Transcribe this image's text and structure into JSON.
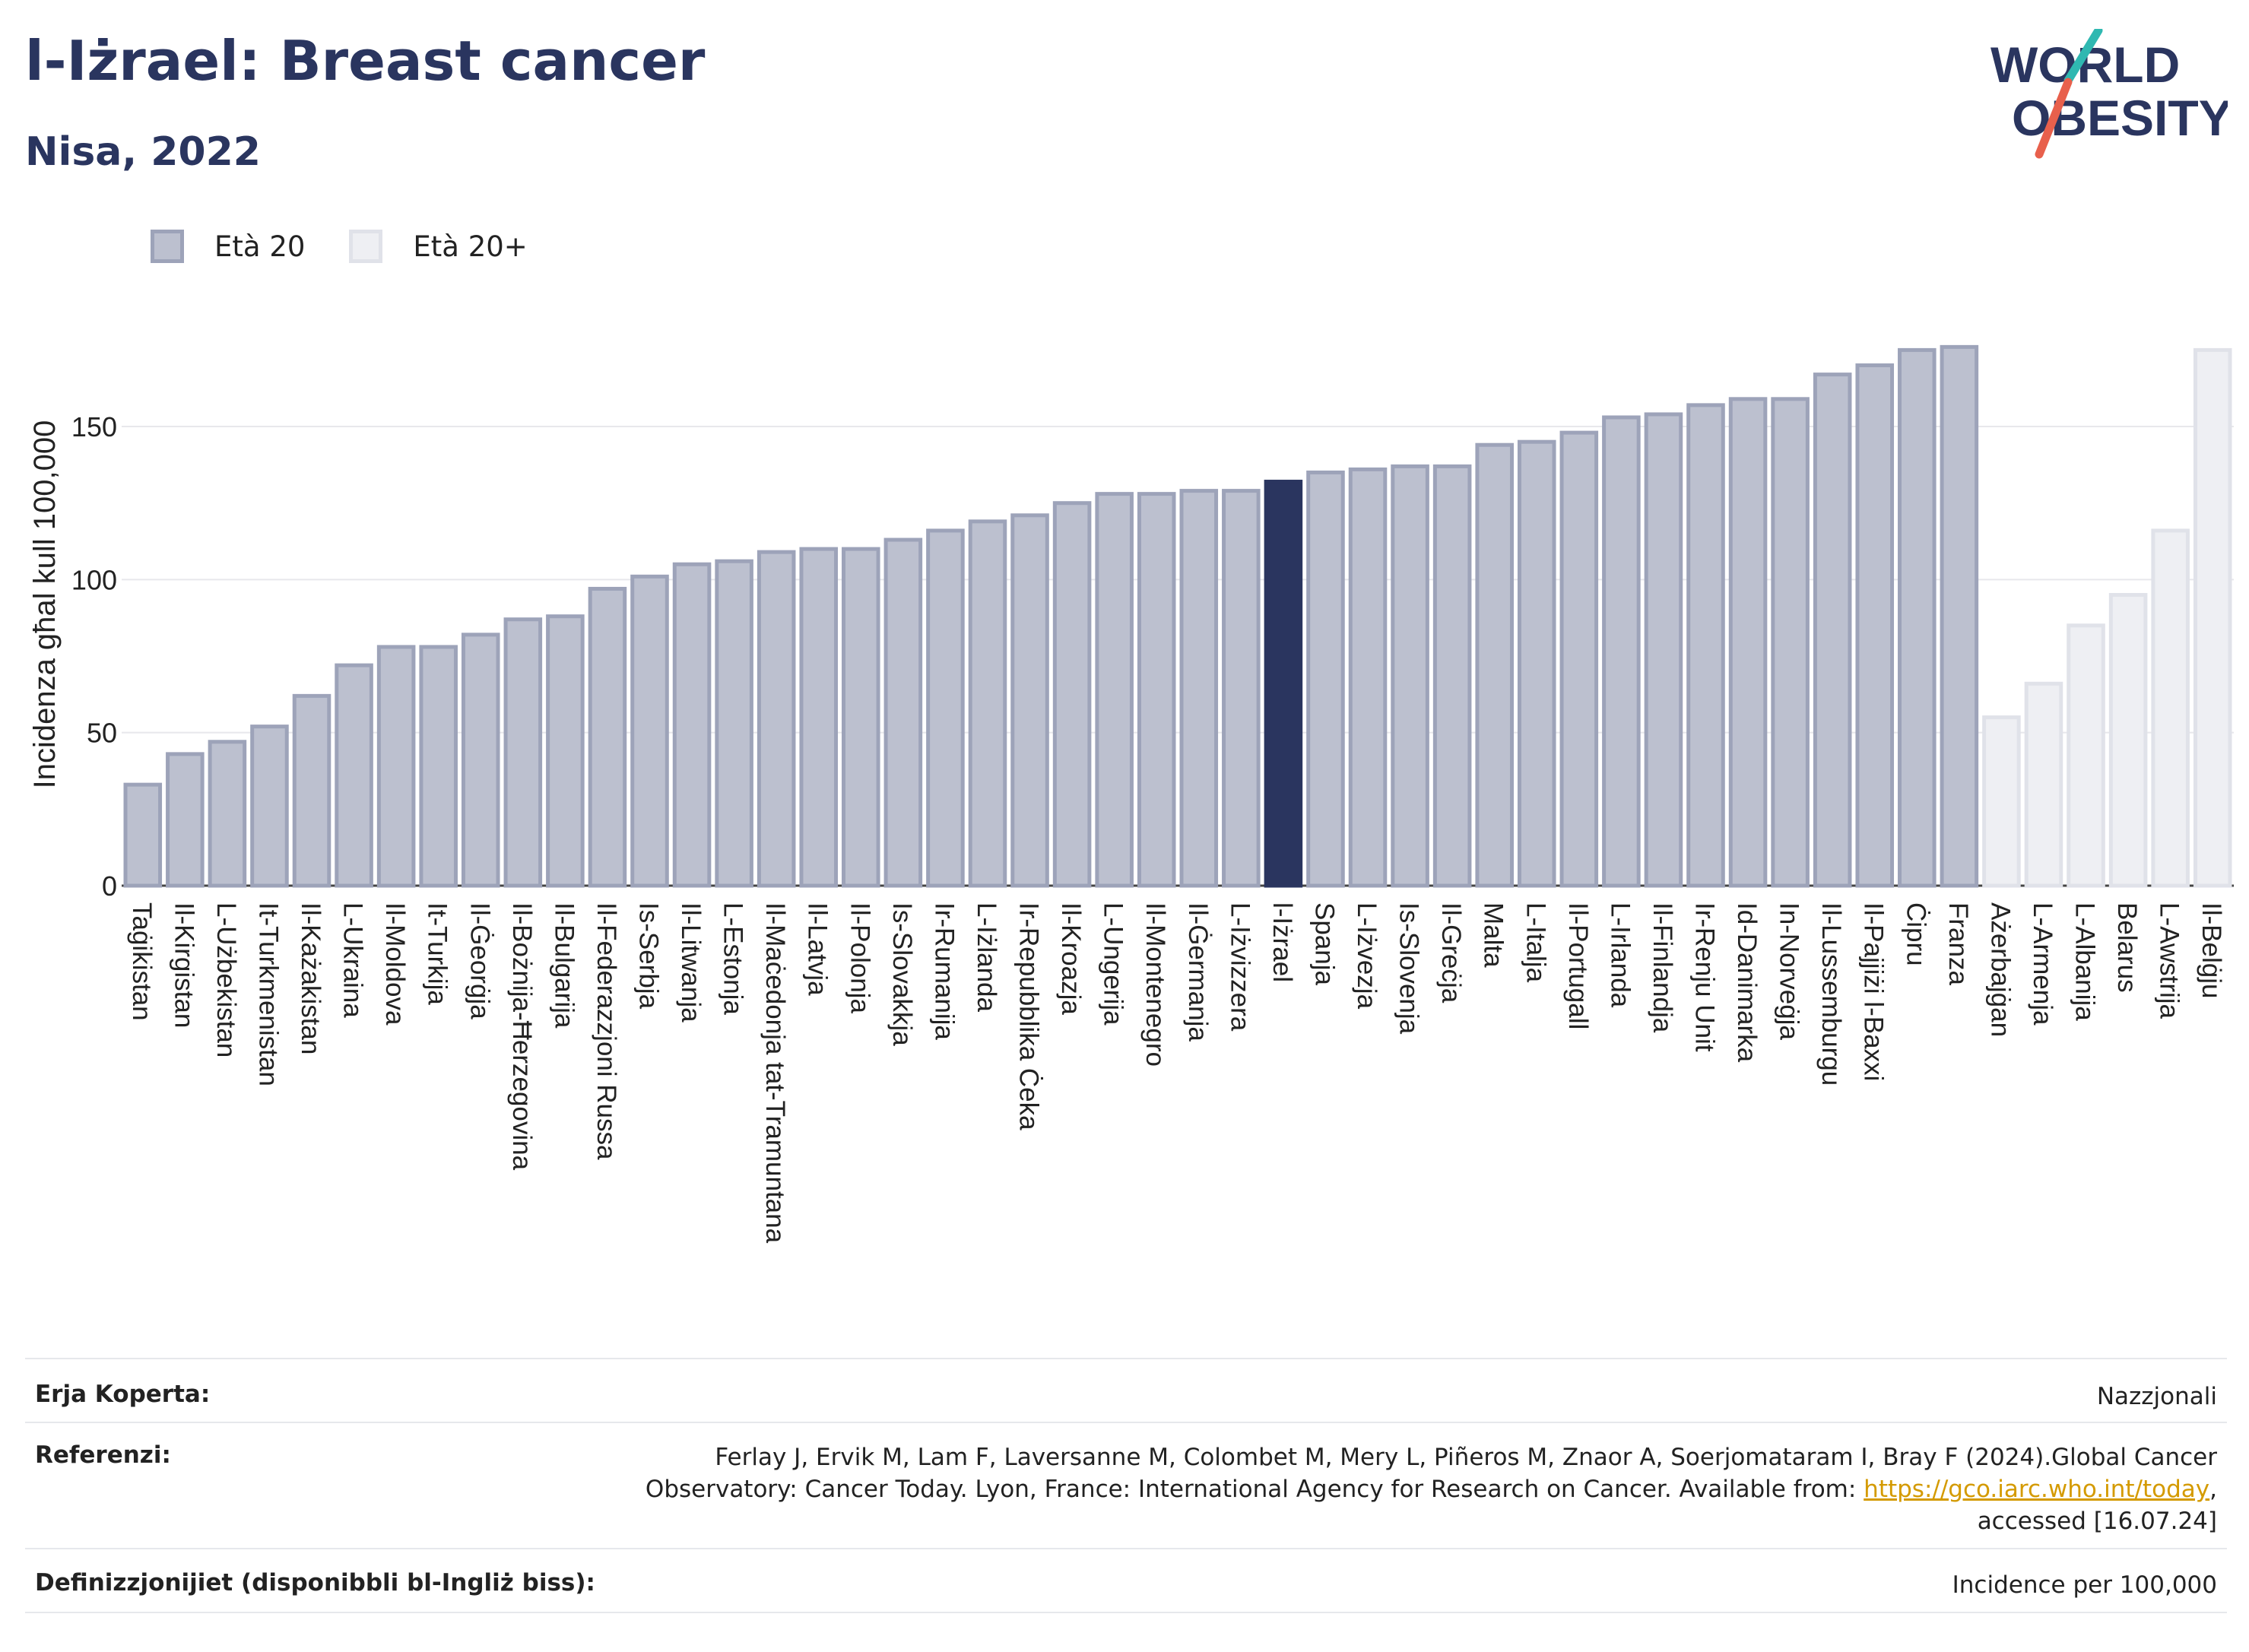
{
  "title": "l-Iżrael: Breast cancer",
  "subtitle": "Nisa, 2022",
  "logo": {
    "line1": "WORLD",
    "line2": "OBESITY"
  },
  "colors": {
    "brand_navy": "#2a355f",
    "logo_teal": "#2fb8b1",
    "logo_red": "#e8604c",
    "highlight_bar": "#2a355f",
    "age20_fill": "#bcc0cf",
    "age20_border": "#9da3b9",
    "age20plus_fill": "#eeeff3",
    "age20plus_border": "#e0e2e9",
    "gridline": "#e8e8ec"
  },
  "legend": [
    {
      "label": "Età 20",
      "color": "#bcc0cf",
      "border": "#9da3b9"
    },
    {
      "label": "Età 20+",
      "color": "#eeeff3",
      "border": "#e0e2e9"
    }
  ],
  "chart_data": {
    "type": "bar",
    "ylabel": "Incidenza għal kull 100,000",
    "ylim": [
      0,
      190
    ],
    "yticks": [
      0,
      50,
      100,
      150
    ],
    "grid": true,
    "highlight": "l-Iżrael",
    "categories": [
      "Taġikistan",
      "Il-Kirgistan",
      "L-Użbekistan",
      "It-Turkmenistan",
      "Il-Każakistan",
      "L-Ukraina",
      "Il-Moldova",
      "It-Turkija",
      "Il-Ġeorġja",
      "Il-Bożnija-Ħerzegovina",
      "Il-Bulgarija",
      "Il-Federazzjoni Russa",
      "Is-Serbja",
      "Il-Litwanja",
      "L-Estonja",
      "Il-Maċedonja tat-Tramuntana",
      "Il-Latvja",
      "Il-Polonja",
      "Is-Slovakkja",
      "Ir-Rumanija",
      "L-Iżlanda",
      "Ir-Repubblika Ċeka",
      "Il-Kroazja",
      "L-Ungerija",
      "Il-Montenegro",
      "Il-Ġermanja",
      "L-Iżvizzera",
      "l-Iżrael",
      "Spanja",
      "L-Iżvezja",
      "Is-Slovenja",
      "Il-Greċja",
      "Malta",
      "L-Italja",
      "Il-Portugall",
      "L-Irlanda",
      "Il-Finlandja",
      "Ir-Renju Unit",
      "Id-Danimarka",
      "In-Norveġja",
      "Il-Lussemburgu",
      "Il-Pajjiżi l-Baxxi",
      "Ċipru",
      "Franza",
      "Ażerbajġan",
      "L-Armenja",
      "L-Albanija",
      "Belarus",
      "L-Awstrija",
      "Il-Belġju"
    ],
    "values": [
      33,
      43,
      47,
      52,
      62,
      72,
      78,
      78,
      82,
      87,
      88,
      97,
      101,
      105,
      106,
      109,
      110,
      110,
      113,
      116,
      119,
      121,
      125,
      128,
      128,
      129,
      129,
      132,
      135,
      136,
      137,
      137,
      144,
      145,
      148,
      153,
      154,
      157,
      159,
      159,
      167,
      170,
      175,
      176,
      55,
      66,
      85,
      95,
      116,
      175
    ],
    "groups": [
      "Età 20",
      "Età 20",
      "Età 20",
      "Età 20",
      "Età 20",
      "Età 20",
      "Età 20",
      "Età 20",
      "Età 20",
      "Età 20",
      "Età 20",
      "Età 20",
      "Età 20",
      "Età 20",
      "Età 20",
      "Età 20",
      "Età 20",
      "Età 20",
      "Età 20",
      "Età 20",
      "Età 20",
      "Età 20",
      "Età 20",
      "Età 20",
      "Età 20",
      "Età 20",
      "Età 20",
      "Età 20",
      "Età 20",
      "Età 20",
      "Età 20",
      "Età 20",
      "Età 20",
      "Età 20",
      "Età 20",
      "Età 20",
      "Età 20",
      "Età 20",
      "Età 20",
      "Età 20",
      "Età 20",
      "Età 20",
      "Età 20",
      "Età 20",
      "Età 20+",
      "Età 20+",
      "Età 20+",
      "Età 20+",
      "Età 20+",
      "Età 20+"
    ]
  },
  "footer": {
    "coverage_label": "Erja Koperta:",
    "coverage_value": "Nazzjonali",
    "references_label": "Referenzi:",
    "references_line1": "Ferlay J, Ervik M, Lam F, Laversanne M, Colombet M, Mery L, Piñeros M, Znaor A, Soerjomataram I, Bray F (2024).Global Cancer",
    "references_line2_text": "Observatory: Cancer Today. Lyon, France: International Agency for Research on Cancer. Available from: ",
    "references_link": "https://gco.iarc.who.int/today",
    "references_line2_end": ",",
    "references_line3": "accessed [16.07.24]",
    "definitions_label": "Definizzjonijiet (disponibbli bl-Ingliż biss):",
    "definitions_value": "Incidence per 100,000"
  }
}
